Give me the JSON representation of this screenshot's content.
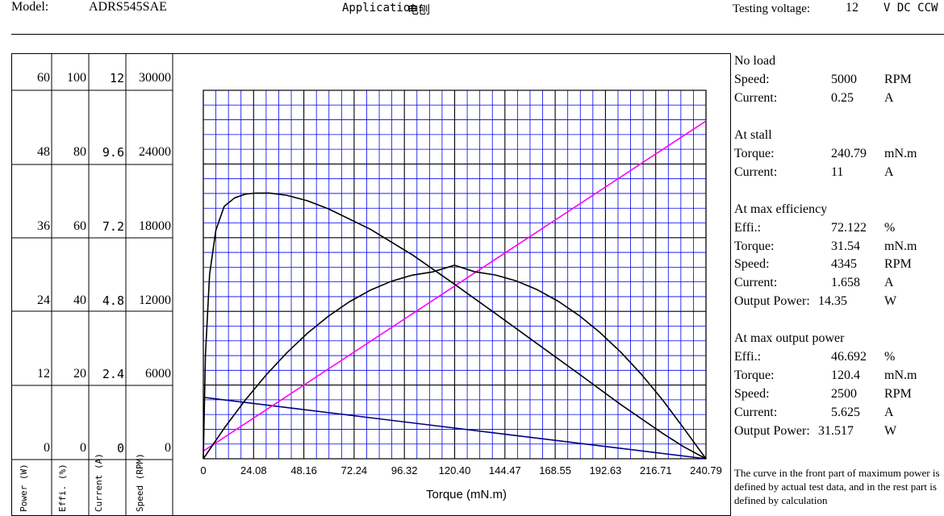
{
  "header": {
    "model_label": "Model:",
    "model_value": "ADRS545SAE",
    "application_label": "Application:",
    "application_value": "电刨",
    "voltage_label": "Testing voltage:",
    "voltage_value": "12",
    "voltage_unit": "V DC CCW"
  },
  "scales": {
    "power": {
      "title": "Power (W)",
      "ticks": [
        "60",
        "48",
        "36",
        "24",
        "12",
        "0"
      ]
    },
    "efficiency": {
      "title": "Effi. (%)",
      "ticks": [
        "100",
        "80",
        "60",
        "40",
        "20",
        "0"
      ]
    },
    "current": {
      "title": "Current (A)",
      "ticks": [
        "12",
        "9.6",
        "7.2",
        "4.8",
        "2.4",
        "0"
      ]
    },
    "speed": {
      "title": "Speed (RPM)",
      "ticks": [
        "30000",
        "24000",
        "18000",
        "12000",
        "6000",
        "0"
      ]
    }
  },
  "chart_data": {
    "type": "line",
    "title": "",
    "xlabel": "Torque (mN.m)",
    "x_ticks": [
      "0",
      "24.08",
      "48.16",
      "72.24",
      "96.32",
      "120.40",
      "144.47",
      "168.55",
      "192.63",
      "216.71",
      "240.79"
    ],
    "xlim": [
      0,
      240.79
    ],
    "grid": true,
    "series": [
      {
        "color": "#000080",
        "axis": "speed",
        "ylim": [
          0,
          30000
        ],
        "x": [
          0,
          240.79
        ],
        "y": [
          5000,
          0
        ]
      },
      {
        "color": "#ff00ff",
        "axis": "current",
        "ylim": [
          0,
          12
        ],
        "x": [
          0,
          240.79
        ],
        "y": [
          0.25,
          11
        ]
      },
      {
        "color": "#000000",
        "axis": "efficiency",
        "ylim": [
          0,
          100
        ],
        "x": [
          0,
          1,
          3,
          6,
          10,
          15,
          20,
          25,
          31.54,
          40,
          50,
          60,
          80,
          100,
          120,
          140,
          160,
          180,
          200,
          220,
          230,
          240.79
        ],
        "y": [
          0,
          28,
          50,
          62,
          68.5,
          70.8,
          71.8,
          72.1,
          72.122,
          71.5,
          70.0,
          67.8,
          62.3,
          55.4,
          47.5,
          39.4,
          31.2,
          23.0,
          14.7,
          6.9,
          3.3,
          0
        ]
      },
      {
        "color": "#000000",
        "axis": "power",
        "ylim": [
          0,
          60
        ],
        "x": [
          0,
          10,
          20,
          30,
          40,
          50,
          60,
          70,
          80,
          90,
          100,
          110,
          120.4,
          130,
          140,
          150,
          160,
          170,
          180,
          190,
          200,
          210,
          220,
          230,
          240.79
        ],
        "y": [
          0,
          4.97,
          9.52,
          13.61,
          17.26,
          20.48,
          23.24,
          25.57,
          27.45,
          28.89,
          29.89,
          30.44,
          31.517,
          30.45,
          29.92,
          28.95,
          27.52,
          25.65,
          23.33,
          20.56,
          17.35,
          13.69,
          9.58,
          5.03,
          0
        ]
      }
    ]
  },
  "panel": {
    "no_load": {
      "title": "No load",
      "rows": [
        [
          "Speed:",
          "5000",
          "RPM"
        ],
        [
          "Current:",
          "0.25",
          "A"
        ]
      ]
    },
    "stall": {
      "title": "At stall",
      "rows": [
        [
          "Torque:",
          "240.79",
          "mN.m"
        ],
        [
          "Current:",
          "11",
          "A"
        ]
      ]
    },
    "max_eff": {
      "title": "At max efficiency",
      "rows": [
        [
          "Effi.:",
          "72.122",
          "%"
        ],
        [
          "Torque:",
          "31.54",
          "mN.m"
        ],
        [
          "Speed:",
          "4345",
          "RPM"
        ],
        [
          "Current:",
          "1.658",
          "A"
        ],
        [
          "Output Power:",
          "14.35",
          "W"
        ]
      ]
    },
    "max_pow": {
      "title": "At max output power",
      "rows": [
        [
          "Effi.:",
          "46.692",
          "%"
        ],
        [
          "Torque:",
          "120.4",
          "mN.m"
        ],
        [
          "Speed:",
          "2500",
          "RPM"
        ],
        [
          "Current:",
          "5.625",
          "A"
        ],
        [
          "Output Power:",
          "31.517",
          "W"
        ]
      ]
    },
    "note": "The curve in the front part of maximum power is defined by actual test data, and in the rest part is defined by calculation"
  }
}
